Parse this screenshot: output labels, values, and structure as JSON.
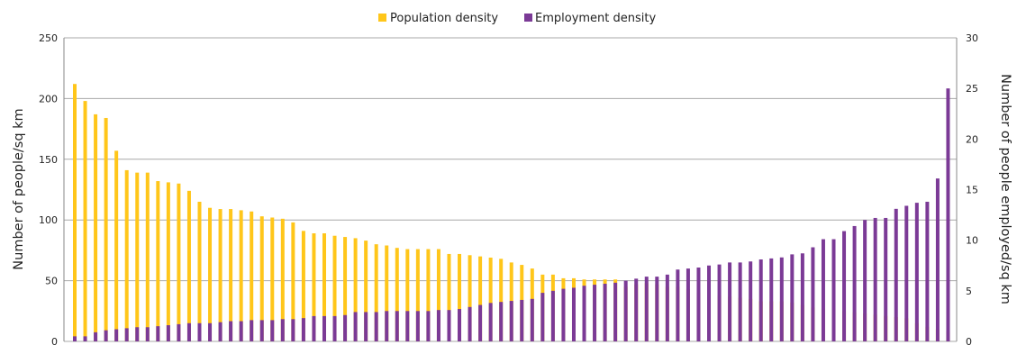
{
  "chart_data": {
    "type": "bar",
    "title": "",
    "legend": {
      "placement": "top-center",
      "entries": [
        {
          "label": "Population density",
          "color": "#FFC61A"
        },
        {
          "label": "Employment  density",
          "color": "#7B3A96"
        }
      ]
    },
    "left_axis": {
      "label": "Number of people/sq km",
      "ylim": [
        0,
        250
      ],
      "ticks": [
        "0",
        "50",
        "100",
        "150",
        "200",
        "250"
      ]
    },
    "right_axis": {
      "label": "Number of people employed/sq km",
      "ylim": [
        0,
        30
      ],
      "ticks": [
        "0",
        "5",
        "10",
        "15",
        "20",
        "25",
        "30"
      ]
    },
    "grid": true,
    "category_count": 85,
    "series": [
      {
        "name": "Population density",
        "axis": "left",
        "color": "#FFC61A",
        "values": [
          212,
          198,
          187,
          184,
          157,
          141,
          139,
          139,
          132,
          131,
          130,
          124,
          115,
          110,
          109,
          109,
          108,
          107,
          103,
          102,
          101,
          98,
          91,
          89,
          89,
          87,
          86,
          85,
          83,
          80,
          79,
          77,
          76,
          76,
          76,
          76,
          72,
          72,
          71,
          70,
          69,
          68,
          65,
          63,
          60,
          55,
          55,
          52,
          52,
          51,
          51,
          51,
          51,
          45,
          47,
          48,
          47,
          45,
          45,
          43,
          40,
          39,
          38,
          37,
          36,
          35,
          33,
          33,
          33,
          32,
          30,
          28,
          27,
          27,
          25,
          24,
          23,
          22,
          21,
          20,
          19,
          15,
          12,
          10,
          8
        ]
      },
      {
        "name": "Employment  density",
        "axis": "right",
        "color": "#7B3A96",
        "values": [
          0.5,
          0.5,
          0.9,
          1.1,
          1.2,
          1.3,
          1.4,
          1.4,
          1.5,
          1.6,
          1.7,
          1.8,
          1.8,
          1.8,
          1.9,
          2.0,
          2.0,
          2.1,
          2.1,
          2.1,
          2.2,
          2.2,
          2.3,
          2.5,
          2.5,
          2.5,
          2.6,
          2.9,
          2.9,
          2.9,
          3.0,
          3.0,
          3.0,
          3.0,
          3.0,
          3.1,
          3.1,
          3.2,
          3.4,
          3.6,
          3.8,
          3.9,
          4.0,
          4.1,
          4.2,
          4.8,
          5.0,
          5.2,
          5.3,
          5.5,
          5.6,
          5.7,
          5.8,
          6.0,
          6.2,
          6.4,
          6.4,
          6.6,
          7.1,
          7.2,
          7.3,
          7.5,
          7.6,
          7.8,
          7.8,
          7.9,
          8.1,
          8.2,
          8.3,
          8.6,
          8.7,
          9.3,
          10.1,
          10.1,
          10.9,
          11.4,
          12.0,
          12.2,
          12.2,
          13.1,
          13.4,
          13.7,
          13.8,
          16.1,
          25.0
        ]
      }
    ]
  }
}
